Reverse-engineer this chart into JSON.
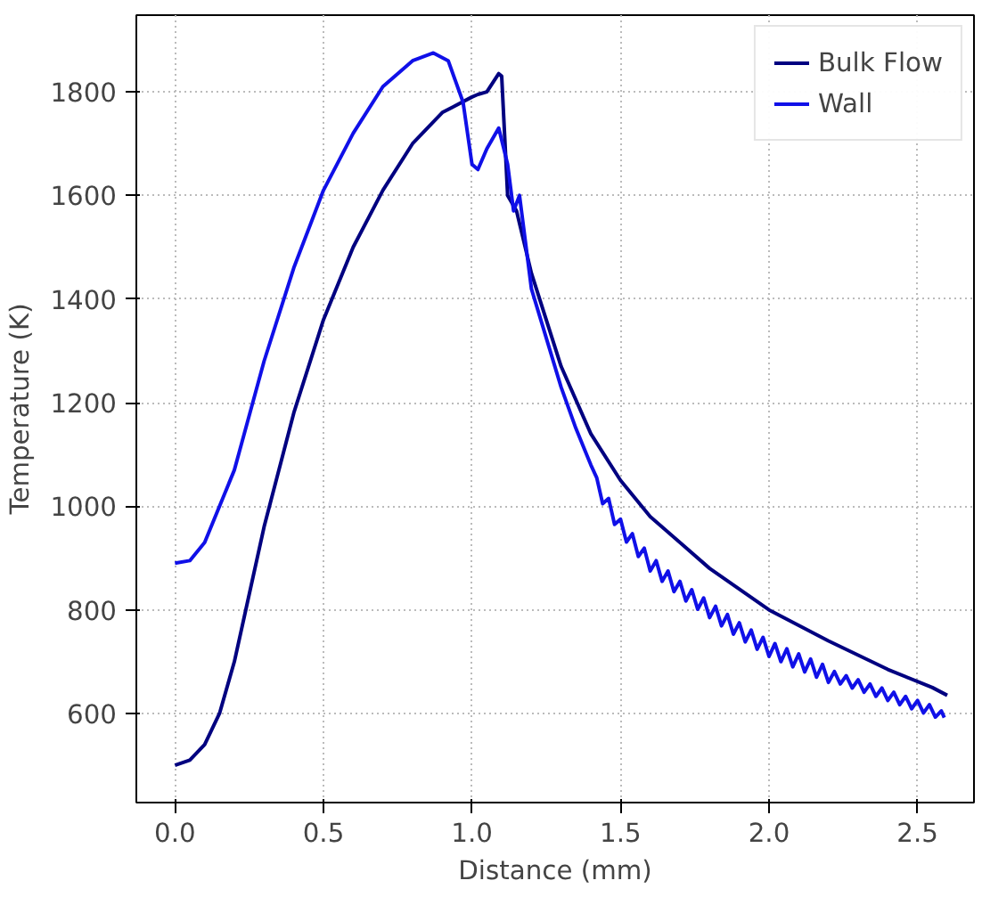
{
  "chart_data": {
    "type": "line",
    "xlabel": "Distance (mm)",
    "ylabel": "Temperature (K)",
    "xlim": [
      -0.13,
      2.69
    ],
    "ylim": [
      428,
      1948
    ],
    "xticks": [
      {
        "value": 0,
        "label": "0.0"
      },
      {
        "value": 0.5,
        "label": "0.5"
      },
      {
        "value": 1,
        "label": "1.0"
      },
      {
        "value": 1.5,
        "label": "1.5"
      },
      {
        "value": 2,
        "label": "2.0"
      },
      {
        "value": 2.5,
        "label": "2.5"
      }
    ],
    "yticks": [
      600,
      800,
      1000,
      1200,
      1400,
      1600,
      1800
    ],
    "grid": true,
    "legend": "top right",
    "line_style": "solid",
    "series": [
      {
        "name": "Bulk Flow",
        "color": "#000080",
        "x": [
          0,
          0.05,
          0.1,
          0.15,
          0.2,
          0.25,
          0.3,
          0.4,
          0.5,
          0.6,
          0.7,
          0.8,
          0.9,
          1.0,
          1.02,
          1.05,
          1.09,
          1.1,
          1.12,
          1.15,
          1.2,
          1.3,
          1.4,
          1.5,
          1.6,
          1.8,
          2.0,
          2.2,
          2.4,
          2.55,
          2.6
        ],
        "values": [
          500,
          510,
          540,
          600,
          700,
          830,
          960,
          1180,
          1360,
          1500,
          1610,
          1700,
          1760,
          1790,
          1795,
          1800,
          1835,
          1830,
          1600,
          1570,
          1450,
          1270,
          1140,
          1050,
          980,
          880,
          800,
          740,
          685,
          650,
          635
        ]
      },
      {
        "name": "Wall",
        "color": "#1010e8",
        "x": [
          0,
          0.05,
          0.1,
          0.2,
          0.3,
          0.4,
          0.5,
          0.6,
          0.7,
          0.8,
          0.87,
          0.92,
          0.97,
          1.0,
          1.02,
          1.05,
          1.09,
          1.12,
          1.14,
          1.16,
          1.2,
          1.3,
          1.35,
          1.4,
          1.42,
          1.44,
          1.46,
          1.48,
          1.5,
          1.52,
          1.54,
          1.56,
          1.58,
          1.6,
          1.62,
          1.64,
          1.66,
          1.68,
          1.7,
          1.72,
          1.74,
          1.76,
          1.78,
          1.8,
          1.82,
          1.84,
          1.86,
          1.88,
          1.9,
          1.92,
          1.94,
          1.96,
          1.98,
          2.0,
          2.02,
          2.04,
          2.06,
          2.08,
          2.1,
          2.12,
          2.14,
          2.16,
          2.18,
          2.2,
          2.22,
          2.24,
          2.26,
          2.28,
          2.3,
          2.32,
          2.34,
          2.36,
          2.38,
          2.4,
          2.42,
          2.44,
          2.46,
          2.48,
          2.5,
          2.52,
          2.54,
          2.56,
          2.58,
          2.59
        ],
        "values": [
          890,
          895,
          930,
          1070,
          1280,
          1460,
          1610,
          1720,
          1810,
          1860,
          1875,
          1860,
          1780,
          1660,
          1650,
          1690,
          1730,
          1660,
          1570,
          1600,
          1420,
          1230,
          1150,
          1080,
          1055,
          1005,
          1015,
          965,
          975,
          931,
          947,
          903,
          919,
          875,
          895,
          855,
          875,
          835,
          855,
          817,
          839,
          801,
          823,
          785,
          807,
          769,
          791,
          753,
          775,
          738,
          761,
          724,
          747,
          710,
          735,
          700,
          725,
          690,
          715,
          680,
          705,
          670,
          695,
          660,
          681,
          657,
          673,
          649,
          665,
          641,
          657,
          633,
          649,
          625,
          641,
          617,
          633,
          609,
          625,
          601,
          617,
          593,
          605,
          592
        ]
      }
    ]
  }
}
